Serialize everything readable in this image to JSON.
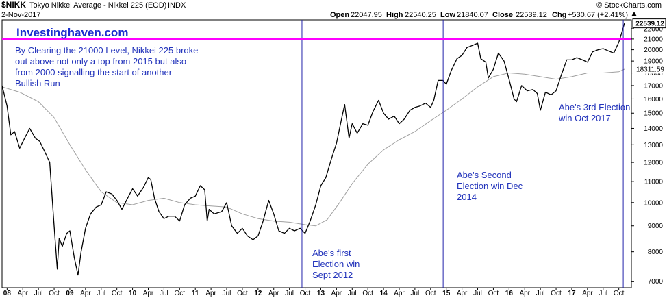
{
  "header": {
    "symbol": "$NIKK",
    "name": "Tokyo Nikkei Average - Nikkei 225 (EOD)",
    "exchange": "INDX",
    "date": "2-Nov-2017",
    "source": "© StockCharts.com",
    "open_label": "Open",
    "open": "22047.95",
    "high_label": "High",
    "high": "22540.25",
    "low_label": "Low",
    "low": "21840.07",
    "close_label": "Close",
    "close": "22539.12",
    "chg_label": "Chg",
    "chg": "+530.67 (+2.41%)",
    "chg_icon": "up-triangle-icon"
  },
  "annotations": {
    "brand": "Investinghaven.com",
    "main_note": [
      "By Clearing the 21000 Level, Nikkei 225 broke",
      "out above not only a top from 2015 but also",
      "from 2000 signalling the start of another",
      "Bullish Run"
    ],
    "election_2012": [
      "Abe's first",
      "Election win",
      "Sept 2012"
    ],
    "election_2014": [
      "Abe's Second",
      "Election win Dec",
      "2014"
    ],
    "election_2017": [
      "Abe's 3rd Election",
      "win Oct 2017"
    ]
  },
  "colors": {
    "price": "#000000",
    "moving_average": "#a0a0a0",
    "resistance_line": "#ff00ff",
    "markers": "#2222aa",
    "note_text": "#2233bb",
    "brand_text": "#1a2ecf"
  },
  "chart_data": {
    "type": "line",
    "title": "Tokyo Nikkei Average - Nikkei 225 (EOD)",
    "ylim": [
      6800,
      22900
    ],
    "xlim": [
      2007.92,
      2017.95
    ],
    "y_scale": "log",
    "grid": false,
    "y_ticks": [
      "7000",
      "8000",
      "9000",
      "10000",
      "11000",
      "12000",
      "13000",
      "14000",
      "15000",
      "16000",
      "17000",
      "18000",
      "19000",
      "20000",
      "21000",
      "22000"
    ],
    "x_ticks": [
      {
        "x": 2008.0,
        "label": "08",
        "bold": true
      },
      {
        "x": 2008.25,
        "label": "Apr"
      },
      {
        "x": 2008.5,
        "label": "Jul"
      },
      {
        "x": 2008.75,
        "label": "Oct"
      },
      {
        "x": 2009.0,
        "label": "09",
        "bold": true
      },
      {
        "x": 2009.25,
        "label": "Apr"
      },
      {
        "x": 2009.5,
        "label": "Jul"
      },
      {
        "x": 2009.75,
        "label": "Oct"
      },
      {
        "x": 2010.0,
        "label": "10",
        "bold": true
      },
      {
        "x": 2010.25,
        "label": "Apr"
      },
      {
        "x": 2010.5,
        "label": "Jul"
      },
      {
        "x": 2010.75,
        "label": "Oct"
      },
      {
        "x": 2011.0,
        "label": "11",
        "bold": true
      },
      {
        "x": 2011.25,
        "label": "Apr"
      },
      {
        "x": 2011.5,
        "label": "Jul"
      },
      {
        "x": 2011.75,
        "label": "Oct"
      },
      {
        "x": 2012.0,
        "label": "12",
        "bold": true
      },
      {
        "x": 2012.25,
        "label": "Apr"
      },
      {
        "x": 2012.5,
        "label": "Jul"
      },
      {
        "x": 2012.75,
        "label": "Oct"
      },
      {
        "x": 2013.0,
        "label": "13",
        "bold": true
      },
      {
        "x": 2013.25,
        "label": "Apr"
      },
      {
        "x": 2013.5,
        "label": "Jul"
      },
      {
        "x": 2013.75,
        "label": "Oct"
      },
      {
        "x": 2014.0,
        "label": "14",
        "bold": true
      },
      {
        "x": 2014.25,
        "label": "Apr"
      },
      {
        "x": 2014.5,
        "label": "Jul"
      },
      {
        "x": 2014.75,
        "label": "Oct"
      },
      {
        "x": 2015.0,
        "label": "15",
        "bold": true
      },
      {
        "x": 2015.25,
        "label": "Apr"
      },
      {
        "x": 2015.5,
        "label": "Jul"
      },
      {
        "x": 2015.75,
        "label": "Oct"
      },
      {
        "x": 2016.0,
        "label": "16",
        "bold": true
      },
      {
        "x": 2016.25,
        "label": "Apr"
      },
      {
        "x": 2016.5,
        "label": "Jul"
      },
      {
        "x": 2016.75,
        "label": "Oct"
      },
      {
        "x": 2017.0,
        "label": "17",
        "bold": true
      },
      {
        "x": 2017.25,
        "label": "Apr"
      },
      {
        "x": 2017.5,
        "label": "Jul"
      },
      {
        "x": 2017.75,
        "label": "Oct"
      }
    ],
    "price_labels": [
      {
        "text": "22539.12",
        "y": 22539.12,
        "boxed": true
      },
      {
        "text": "18311.59",
        "y": 18311.59,
        "boxed": false
      }
    ],
    "resistance_level": 21000,
    "event_lines": [
      {
        "x": 2012.7,
        "name": "Abe's first Election win"
      },
      {
        "x": 2014.95,
        "name": "Abe's Second Election win Dec 2014"
      },
      {
        "x": 2017.82,
        "name": "Abe's 3rd Election win Oct 2017"
      }
    ],
    "series": [
      {
        "name": "Nikkei 225",
        "x": [
          2007.92,
          2008.0,
          2008.06,
          2008.12,
          2008.2,
          2008.28,
          2008.36,
          2008.45,
          2008.52,
          2008.6,
          2008.68,
          2008.75,
          2008.8,
          2008.83,
          2008.88,
          2008.95,
          2009.0,
          2009.07,
          2009.13,
          2009.18,
          2009.25,
          2009.33,
          2009.42,
          2009.5,
          2009.58,
          2009.67,
          2009.75,
          2009.83,
          2009.92,
          2010.0,
          2010.08,
          2010.17,
          2010.25,
          2010.29,
          2010.35,
          2010.42,
          2010.5,
          2010.58,
          2010.67,
          2010.75,
          2010.83,
          2010.92,
          2011.0,
          2011.08,
          2011.15,
          2011.19,
          2011.22,
          2011.3,
          2011.42,
          2011.5,
          2011.58,
          2011.67,
          2011.75,
          2011.83,
          2011.92,
          2012.0,
          2012.08,
          2012.17,
          2012.25,
          2012.33,
          2012.42,
          2012.5,
          2012.58,
          2012.67,
          2012.75,
          2012.83,
          2012.92,
          2013.0,
          2013.08,
          2013.17,
          2013.25,
          2013.33,
          2013.38,
          2013.45,
          2013.5,
          2013.58,
          2013.67,
          2013.75,
          2013.83,
          2013.92,
          2014.0,
          2014.08,
          2014.17,
          2014.25,
          2014.33,
          2014.42,
          2014.5,
          2014.58,
          2014.67,
          2014.75,
          2014.8,
          2014.87,
          2014.95,
          2015.0,
          2015.08,
          2015.17,
          2015.25,
          2015.33,
          2015.42,
          2015.5,
          2015.55,
          2015.63,
          2015.67,
          2015.75,
          2015.83,
          2015.92,
          2016.0,
          2016.08,
          2016.12,
          2016.2,
          2016.29,
          2016.38,
          2016.45,
          2016.5,
          2016.58,
          2016.67,
          2016.75,
          2016.83,
          2016.92,
          2017.0,
          2017.08,
          2017.17,
          2017.25,
          2017.33,
          2017.42,
          2017.5,
          2017.58,
          2017.67,
          2017.75,
          2017.8,
          2017.84
        ],
        "values": [
          17000,
          15500,
          13600,
          13800,
          12800,
          13400,
          14000,
          13400,
          13200,
          12600,
          12000,
          9000,
          7400,
          8500,
          8200,
          8700,
          8800,
          7800,
          7200,
          8000,
          8900,
          9500,
          9800,
          9900,
          10500,
          10400,
          10100,
          9700,
          10200,
          10650,
          10300,
          10700,
          11200,
          11100,
          10200,
          9600,
          9300,
          9400,
          9400,
          9200,
          9900,
          10200,
          10300,
          10800,
          10600,
          9200,
          9700,
          9500,
          9600,
          10000,
          9000,
          8700,
          8900,
          8600,
          8450,
          8600,
          9200,
          10100,
          9500,
          8800,
          8700,
          8900,
          8800,
          8900,
          8700,
          9200,
          9900,
          10800,
          11200,
          12200,
          13100,
          14600,
          15600,
          13400,
          14300,
          13700,
          14300,
          14200,
          15100,
          15900,
          15000,
          14600,
          14800,
          14300,
          14600,
          15200,
          15400,
          15500,
          15700,
          15400,
          15900,
          17400,
          17400,
          17100,
          18200,
          19200,
          19500,
          20200,
          20400,
          20600,
          19200,
          18900,
          17600,
          18300,
          19700,
          19000,
          17500,
          16000,
          15800,
          17000,
          16600,
          16700,
          16400,
          15200,
          16500,
          16300,
          16600,
          17800,
          19100,
          19100,
          19300,
          19100,
          18900,
          19800,
          20000,
          20100,
          19900,
          19700,
          20700,
          21700,
          22539.12
        ]
      },
      {
        "name": "Moving Average",
        "x": [
          2007.92,
          2008.2,
          2008.5,
          2008.75,
          2009.0,
          2009.25,
          2009.5,
          2009.75,
          2010.0,
          2010.25,
          2010.5,
          2010.75,
          2011.0,
          2011.25,
          2011.5,
          2011.75,
          2012.0,
          2012.25,
          2012.5,
          2012.75,
          2012.92,
          2013.1,
          2013.3,
          2013.5,
          2013.75,
          2014.0,
          2014.25,
          2014.5,
          2014.75,
          2015.0,
          2015.25,
          2015.5,
          2015.75,
          2016.0,
          2016.25,
          2016.5,
          2016.75,
          2017.0,
          2017.25,
          2017.5,
          2017.75,
          2017.84
        ],
        "values": [
          16900,
          16500,
          15800,
          14700,
          13000,
          11600,
          10500,
          10000,
          9900,
          10100,
          10200,
          10000,
          9900,
          9850,
          9800,
          9500,
          9300,
          9200,
          9150,
          9050,
          9000,
          9250,
          10000,
          10900,
          11900,
          12700,
          13300,
          13800,
          14500,
          15200,
          16000,
          16900,
          17700,
          18000,
          17900,
          17700,
          17500,
          17700,
          18000,
          18000,
          18100,
          18311.59
        ]
      }
    ]
  }
}
